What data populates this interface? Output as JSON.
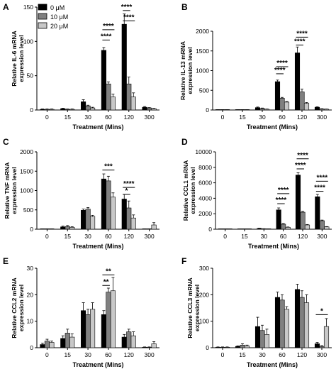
{
  "legend": {
    "entries": [
      {
        "label": "0 μM",
        "color": "#000000"
      },
      {
        "label": "10 μM",
        "color": "#808080"
      },
      {
        "label": "20 μM",
        "color": "#c8c8c8"
      }
    ]
  },
  "chart_data": [
    {
      "type": "bar",
      "panel_label": "A",
      "ylabel": "Relative IL-6 mRNA expression level",
      "xlabel": "Treatment (Mins)",
      "categories": [
        "0",
        "15",
        "30",
        "60",
        "120",
        "300"
      ],
      "ylim": [
        0,
        150
      ],
      "yticks": [
        0,
        50,
        100,
        150
      ],
      "series": [
        {
          "name": "0 μM",
          "values": [
            1,
            2,
            12,
            87,
            125,
            4
          ],
          "errors": [
            0.5,
            0.5,
            3,
            4,
            15,
            1
          ]
        },
        {
          "name": "10 μM",
          "values": [
            1,
            1,
            6,
            38,
            38,
            3
          ],
          "errors": [
            0.5,
            0.5,
            1,
            3,
            10,
            0.5
          ]
        },
        {
          "name": "20 μM",
          "values": [
            1,
            1,
            3,
            19,
            19,
            2
          ],
          "errors": [
            0.5,
            0.5,
            1,
            4,
            6,
            0.5
          ]
        }
      ],
      "significance": [
        {
          "text": "****",
          "category": "60",
          "from": 0,
          "to": 1,
          "level": 102
        },
        {
          "text": "****",
          "category": "60",
          "from": 0,
          "to": 2,
          "level": 117
        },
        {
          "text": "****",
          "category": "120",
          "from": 0,
          "to": 1,
          "level": 145
        },
        {
          "text": "****",
          "category": "120",
          "from": 0,
          "to": 2,
          "level": 130
        }
      ]
    },
    {
      "type": "bar",
      "panel_label": "B",
      "ylabel": "Relative IL-13 mRNA expression level",
      "xlabel": "Treatment (Mins)",
      "categories": [
        "0",
        "15",
        "30",
        "60",
        "120",
        "300"
      ],
      "ylim": [
        0,
        2000
      ],
      "yticks": [
        0,
        500,
        1000,
        1500,
        2000
      ],
      "series": [
        {
          "name": "0 μM",
          "values": [
            5,
            5,
            60,
            720,
            1450,
            70
          ],
          "errors": [
            2,
            2,
            15,
            40,
            150,
            10
          ]
        },
        {
          "name": "10 μM",
          "values": [
            5,
            5,
            40,
            300,
            460,
            30
          ],
          "errors": [
            2,
            2,
            10,
            20,
            70,
            5
          ]
        },
        {
          "name": "20 μM",
          "values": [
            5,
            5,
            20,
            200,
            170,
            20
          ],
          "errors": [
            2,
            2,
            5,
            15,
            20,
            5
          ]
        }
      ],
      "significance": [
        {
          "text": "****",
          "category": "60",
          "from": 0,
          "to": 1,
          "level": 920
        },
        {
          "text": "****",
          "category": "60",
          "from": 0,
          "to": 2,
          "level": 1100
        },
        {
          "text": "****",
          "category": "120",
          "from": 0,
          "to": 1,
          "level": 1650
        },
        {
          "text": "****",
          "category": "120",
          "from": 0,
          "to": 2,
          "level": 1850
        }
      ]
    },
    {
      "type": "bar",
      "panel_label": "C",
      "ylabel": "Relative TNF mRNA expression level",
      "xlabel": "Treatment (Mins)",
      "categories": [
        "0",
        "15",
        "30",
        "60",
        "120",
        "300"
      ],
      "ylim": [
        0,
        2000
      ],
      "yticks": [
        0,
        500,
        1000,
        1500,
        2000
      ],
      "series": [
        {
          "name": "0 μM",
          "values": [
            5,
            60,
            490,
            1300,
            780,
            5
          ],
          "errors": [
            2,
            20,
            30,
            130,
            120,
            2
          ]
        },
        {
          "name": "10 μM",
          "values": [
            5,
            70,
            520,
            1250,
            550,
            5
          ],
          "errors": [
            2,
            25,
            40,
            120,
            180,
            2
          ]
        },
        {
          "name": "20 μM",
          "values": [
            5,
            50,
            330,
            830,
            290,
            110
          ],
          "errors": [
            2,
            15,
            30,
            110,
            80,
            60
          ]
        }
      ],
      "significance": [
        {
          "text": "***",
          "category": "60",
          "from": 0,
          "to": 2,
          "level": 1530
        },
        {
          "text": "*",
          "category": "120",
          "from": 0,
          "to": 1,
          "level": 900
        },
        {
          "text": "****",
          "category": "120",
          "from": 0,
          "to": 2,
          "level": 1080
        }
      ]
    },
    {
      "type": "bar",
      "panel_label": "D",
      "ylabel": "Relative CCL1 mRNA expression level",
      "xlabel": "Treatment (Mins)",
      "categories": [
        "0",
        "15",
        "30",
        "60",
        "120",
        "300"
      ],
      "ylim": [
        0,
        10000
      ],
      "yticks": [
        0,
        2000,
        4000,
        6000,
        8000,
        10000
      ],
      "series": [
        {
          "name": "0 μM",
          "values": [
            10,
            10,
            100,
            2500,
            7000,
            4200
          ],
          "errors": [
            5,
            5,
            30,
            250,
            300,
            300
          ]
        },
        {
          "name": "10 μM",
          "values": [
            10,
            10,
            50,
            650,
            2200,
            1100
          ],
          "errors": [
            5,
            5,
            15,
            80,
            100,
            80
          ]
        },
        {
          "name": "20 μM",
          "values": [
            10,
            10,
            20,
            250,
            550,
            300
          ],
          "errors": [
            5,
            5,
            5,
            40,
            60,
            40
          ]
        }
      ],
      "significance": [
        {
          "text": "****",
          "category": "60",
          "from": 0,
          "to": 1,
          "level": 3300
        },
        {
          "text": "****",
          "category": "60",
          "from": 0,
          "to": 2,
          "level": 4600
        },
        {
          "text": "****",
          "category": "120",
          "from": 0,
          "to": 1,
          "level": 7800
        },
        {
          "text": "****",
          "category": "120",
          "from": 0,
          "to": 2,
          "level": 9100
        },
        {
          "text": "****",
          "category": "300",
          "from": 0,
          "to": 1,
          "level": 4900
        },
        {
          "text": "****",
          "category": "300",
          "from": 0,
          "to": 2,
          "level": 6200
        }
      ]
    },
    {
      "type": "bar",
      "panel_label": "E",
      "ylabel": "Relative CCL2 mRNA expression level",
      "xlabel": "Treatment (Mins)",
      "categories": [
        "0",
        "15",
        "30",
        "60",
        "120",
        "300"
      ],
      "ylim": [
        0,
        30
      ],
      "yticks": [
        0,
        10,
        20,
        30
      ],
      "series": [
        {
          "name": "0 μM",
          "values": [
            1.2,
            3.5,
            14,
            12.5,
            4,
            0.2
          ],
          "errors": [
            0.5,
            1,
            3,
            1.5,
            1,
            0.1
          ]
        },
        {
          "name": "10 μM",
          "values": [
            2.5,
            5.5,
            12.5,
            21,
            6,
            0.2
          ],
          "errors": [
            0.7,
            1.5,
            2,
            1.5,
            1,
            0.1
          ]
        },
        {
          "name": "20 μM",
          "values": [
            2,
            4,
            14.5,
            21.5,
            4.5,
            1.5
          ],
          "errors": [
            0.5,
            1.2,
            2.5,
            5,
            1.5,
            0.8
          ]
        }
      ],
      "significance": [
        {
          "text": "**",
          "category": "60",
          "from": 0,
          "to": 1,
          "level": 23.5
        },
        {
          "text": "**",
          "category": "60",
          "from": 0,
          "to": 2,
          "level": 27.5
        }
      ]
    },
    {
      "type": "bar",
      "panel_label": "F",
      "ylabel": "Relative CCL3 mRNA expression level",
      "xlabel": "Treatment (Mins)",
      "categories": [
        "0",
        "15",
        "30",
        "60",
        "120",
        "300"
      ],
      "ylim": [
        0,
        300
      ],
      "yticks": [
        0,
        100,
        200,
        300
      ],
      "series": [
        {
          "name": "0 μM",
          "values": [
            2,
            5,
            80,
            190,
            220,
            15
          ],
          "errors": [
            1,
            2,
            35,
            20,
            20,
            5
          ]
        },
        {
          "name": "10 μM",
          "values": [
            2,
            10,
            65,
            180,
            190,
            5
          ],
          "errors": [
            1,
            5,
            20,
            20,
            25,
            3
          ]
        },
        {
          "name": "20 μM",
          "values": [
            2,
            7,
            50,
            145,
            170,
            80
          ],
          "errors": [
            1,
            3,
            20,
            10,
            30,
            30
          ]
        }
      ],
      "significance": [
        {
          "text": "*",
          "category": "300",
          "from": 0,
          "to": 2,
          "level": 125
        }
      ]
    }
  ]
}
